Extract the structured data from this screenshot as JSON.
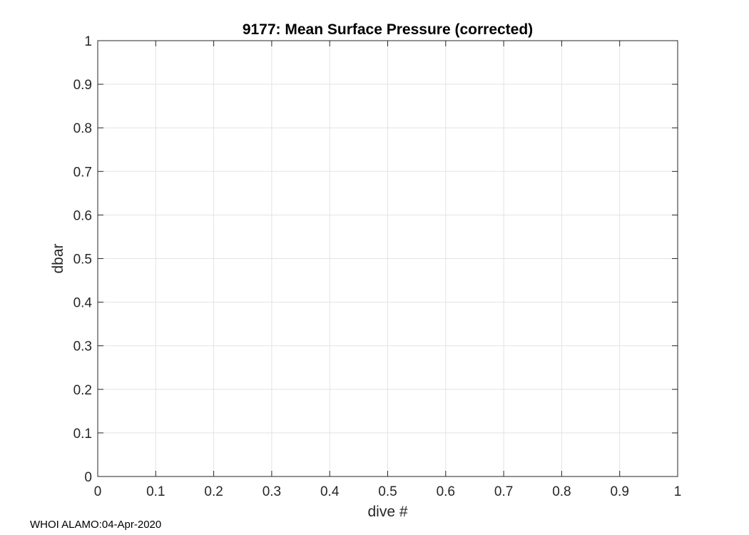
{
  "chart_data": {
    "type": "line",
    "title": "9177: Mean Surface Pressure (corrected)",
    "xlabel": "dive #",
    "ylabel": "dbar",
    "xlim": [
      0,
      1
    ],
    "ylim": [
      0,
      1
    ],
    "xticks": [
      0,
      0.1,
      0.2,
      0.3,
      0.4,
      0.5,
      0.6,
      0.7,
      0.8,
      0.9,
      1
    ],
    "yticks": [
      0,
      0.1,
      0.2,
      0.3,
      0.4,
      0.5,
      0.6,
      0.7,
      0.8,
      0.9,
      1
    ],
    "xtick_labels": [
      "0",
      "0.1",
      "0.2",
      "0.3",
      "0.4",
      "0.5",
      "0.6",
      "0.7",
      "0.8",
      "0.9",
      "1"
    ],
    "ytick_labels": [
      "0",
      "0.1",
      "0.2",
      "0.3",
      "0.4",
      "0.5",
      "0.6",
      "0.7",
      "0.8",
      "0.9",
      "1"
    ],
    "grid": true,
    "series": []
  },
  "footer": {
    "text": "WHOI ALAMO:04-Apr-2020"
  },
  "colors": {
    "axis": "#262626",
    "grid": "#e3e3e3",
    "background": "#ffffff"
  }
}
